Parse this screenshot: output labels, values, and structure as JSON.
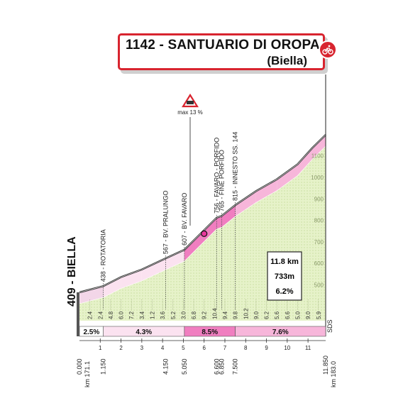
{
  "header": {
    "title": "1142 - SANTUARIO DI OROPA",
    "subtitle": "(Biella)",
    "badge_icon": "cyclist-icon",
    "accent": "#d8242f"
  },
  "start_label": "409 - BIELLA",
  "warning": {
    "icon": "steep-gradient-warning-icon",
    "text": "max 13 %"
  },
  "summary": {
    "distance": "11.8 km",
    "gain": "733m",
    "gradient": "6.2%"
  },
  "sds_label": "SDS",
  "chart_data": {
    "type": "area",
    "title": "1142 - SANTUARIO DI OROPA",
    "subtitle": "(Biella)",
    "x_unit": "km",
    "y_unit": "m",
    "xlim": [
      0,
      11.85
    ],
    "ylim": [
      409,
      1142
    ],
    "profile": {
      "x": [
        0,
        1.15,
        2.0,
        3.0,
        4.15,
        5.05,
        5.6,
        6.6,
        6.85,
        7.5,
        8.5,
        9.5,
        10.5,
        11.2,
        11.85
      ],
      "y": [
        409,
        438,
        480,
        515,
        567,
        607,
        660,
        756,
        765,
        815,
        880,
        935,
        1005,
        1080,
        1142
      ]
    },
    "elevation_ticks": [
      "500",
      "600",
      "700",
      "800",
      "900",
      "1000",
      "1100"
    ],
    "point_labels": [
      {
        "km": 1.15,
        "text": "438 - ROTATORIA"
      },
      {
        "km": 4.15,
        "text": "567 - BV. PRALUNGO"
      },
      {
        "km": 5.05,
        "text": "607 - BV. FAVARO"
      },
      {
        "km": 6.6,
        "text": "756 - FAVARO - PORFIDO"
      },
      {
        "km": 6.85,
        "text": "765 - FINE PORFIDO"
      },
      {
        "km": 7.5,
        "text": "815 - INNESTO SS. 144"
      }
    ],
    "km_gradients": [
      {
        "km": 0.5,
        "text": "2.4"
      },
      {
        "km": 1.0,
        "text": "2.4"
      },
      {
        "km": 1.5,
        "text": "4.8"
      },
      {
        "km": 2.0,
        "text": "6.0"
      },
      {
        "km": 2.5,
        "text": "7.2"
      },
      {
        "km": 3.0,
        "text": "3.4"
      },
      {
        "km": 3.5,
        "text": "1.2"
      },
      {
        "km": 4.0,
        "text": "3.6"
      },
      {
        "km": 4.5,
        "text": "5.2"
      },
      {
        "km": 5.0,
        "text": "3.0"
      },
      {
        "km": 5.5,
        "text": "6.8"
      },
      {
        "km": 6.0,
        "text": "9.2"
      },
      {
        "km": 6.5,
        "text": "10.4"
      },
      {
        "km": 7.0,
        "text": "9.4"
      },
      {
        "km": 7.5,
        "text": "9.8"
      },
      {
        "km": 8.0,
        "text": "10.2"
      },
      {
        "km": 8.5,
        "text": "9.0"
      },
      {
        "km": 9.0,
        "text": "6.2"
      },
      {
        "km": 9.5,
        "text": "5.6"
      },
      {
        "km": 10.0,
        "text": "6.6"
      },
      {
        "km": 10.5,
        "text": "5.0"
      },
      {
        "km": 11.0,
        "text": "9.0"
      },
      {
        "km": 11.5,
        "text": "5.9"
      }
    ],
    "segments": [
      {
        "from": 0,
        "to": 1.15,
        "text": "2.5%",
        "color": "#ffffff"
      },
      {
        "from": 1.15,
        "to": 5.05,
        "text": "4.3%",
        "color": "#fbe2f0"
      },
      {
        "from": 5.05,
        "to": 7.5,
        "text": "8.5%",
        "color": "#f07ec0"
      },
      {
        "from": 7.5,
        "to": 11.85,
        "text": "7.6%",
        "color": "#f7b6da"
      }
    ],
    "km_ticks": [
      "1",
      "2",
      "3",
      "4",
      "5",
      "6",
      "7",
      "8",
      "9",
      "10",
      "11"
    ],
    "distance_marks": [
      "0.000",
      "1.150",
      "4.150",
      "5.050",
      "6.600",
      "6.850",
      "7.500",
      "11.850"
    ],
    "start_km_label": "km 171.1",
    "end_km_label": "km 183.0"
  }
}
